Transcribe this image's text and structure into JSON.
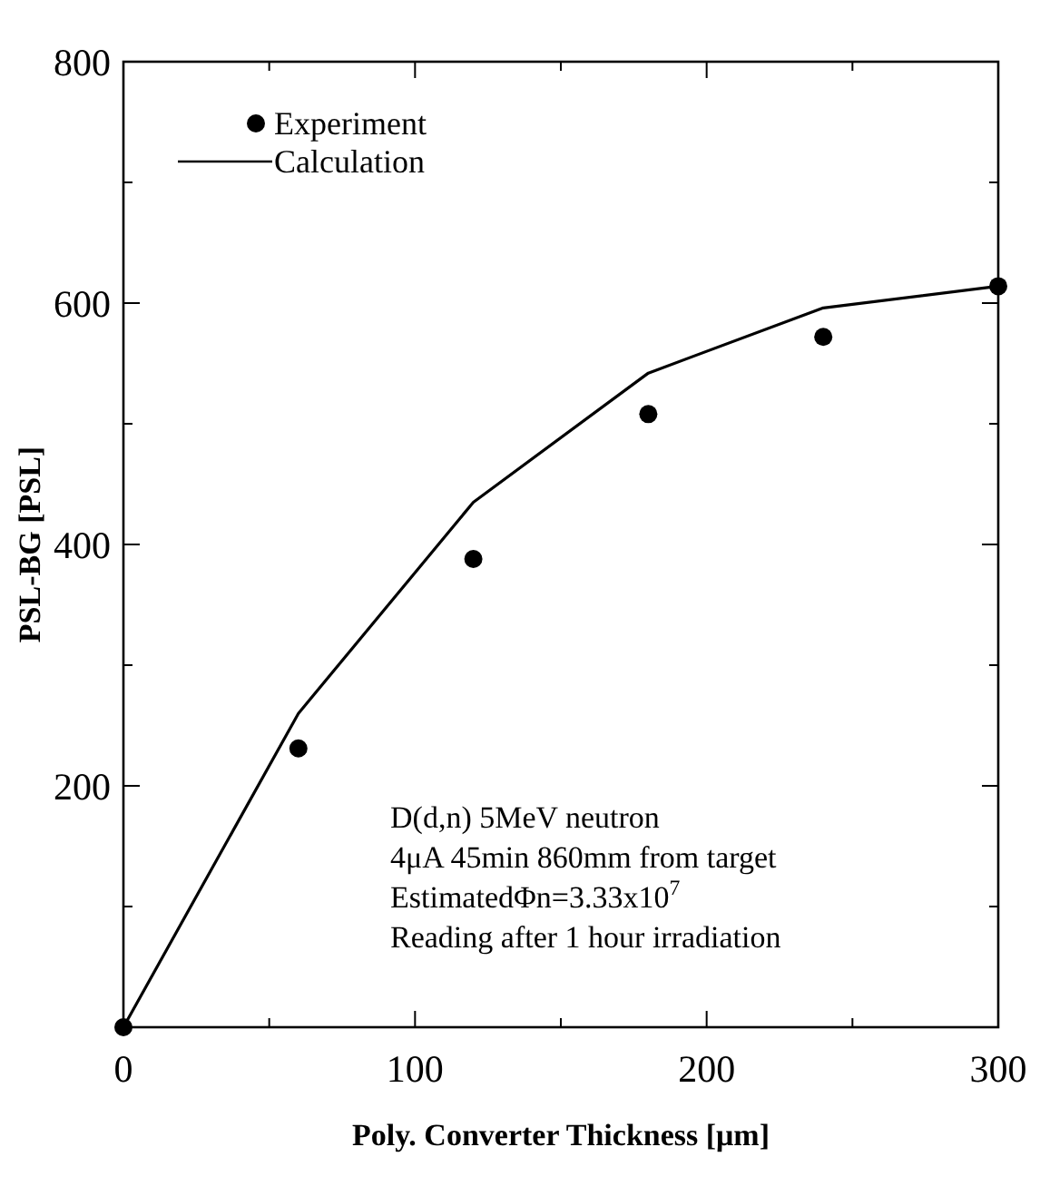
{
  "chart_data": {
    "type": "line",
    "xlabel": "Poly. Converter Thickness [μm]",
    "ylabel": "PSL-BG [PSL]",
    "x": [
      0,
      60,
      120,
      180,
      240,
      300
    ],
    "series": [
      {
        "name": "Experiment",
        "type": "scatter",
        "marker": "circle",
        "color": "#000000",
        "values": [
          0,
          231,
          388,
          508,
          572,
          614
        ]
      },
      {
        "name": "Calculation",
        "marker": "none",
        "line_style": "solid",
        "color": "#000000",
        "values": [
          0,
          260,
          435,
          542,
          596,
          614
        ]
      }
    ],
    "xlim": [
      0,
      300
    ],
    "xticks": [
      0,
      {
        "value": 50,
        "label": null
      },
      100,
      {
        "value": 150,
        "label": null
      },
      200,
      {
        "value": 250,
        "label": null
      },
      300
    ],
    "ylim": [
      0,
      800
    ],
    "yticks": [
      {
        "value": 0,
        "label": null
      },
      {
        "value": 100,
        "label": null
      },
      200,
      {
        "value": 300,
        "label": null
      },
      400,
      {
        "value": 500,
        "label": null
      },
      600,
      {
        "value": 700,
        "label": null
      },
      800
    ],
    "grid": false,
    "legend": "top left",
    "annotations": [
      "D(d,n) 5MeV neutron\n4μA 45min 860mm from target\nEstimatedΦn=3.33x10$^{7}$\nReading after 1 hour irradiation"
    ]
  }
}
